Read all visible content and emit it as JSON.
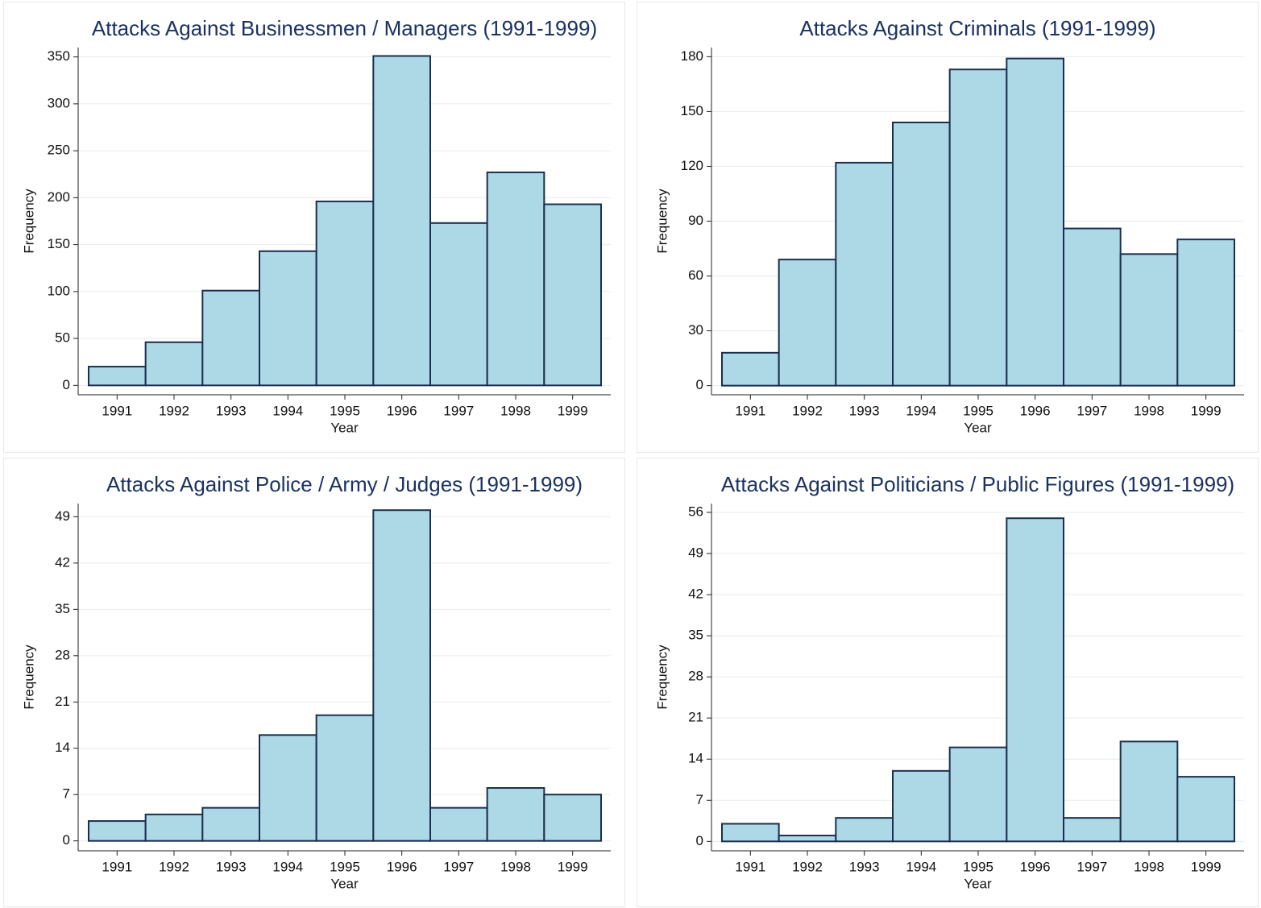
{
  "chart_data": [
    {
      "type": "bar",
      "title": "Attacks Against Businessmen / Managers (1991-1999)",
      "x_label": "Year",
      "y_label": "Frequency",
      "categories": [
        "1991",
        "1992",
        "1993",
        "1994",
        "1995",
        "1996",
        "1997",
        "1998",
        "1999"
      ],
      "values": [
        20,
        46,
        101,
        143,
        196,
        351,
        173,
        227,
        193
      ],
      "ylim": [
        -10,
        360
      ],
      "yticks": [
        0,
        50,
        100,
        150,
        200,
        250,
        300,
        350
      ],
      "grid": true,
      "color": "#add8e6",
      "edge_color": "#1a2f4f"
    },
    {
      "type": "bar",
      "title": "Attacks Against Criminals (1991-1999)",
      "x_label": "Year",
      "y_label": "Frequency",
      "categories": [
        "1991",
        "1992",
        "1993",
        "1994",
        "1995",
        "1996",
        "1997",
        "1998",
        "1999"
      ],
      "values": [
        18,
        69,
        122,
        144,
        173,
        179,
        86,
        72,
        80
      ],
      "ylim": [
        -5,
        185
      ],
      "yticks": [
        0,
        30,
        60,
        90,
        120,
        150,
        180
      ],
      "grid": true,
      "color": "#add8e6",
      "edge_color": "#1a2f4f"
    },
    {
      "type": "bar",
      "title": "Attacks Against Police / Army / Judges (1991-1999)",
      "x_label": "Year",
      "y_label": "Frequency",
      "categories": [
        "1991",
        "1992",
        "1993",
        "1994",
        "1995",
        "1996",
        "1997",
        "1998",
        "1999"
      ],
      "values": [
        3,
        4,
        5,
        16,
        19,
        50,
        5,
        8,
        7
      ],
      "ylim": [
        -1.5,
        51
      ],
      "yticks": [
        0,
        7,
        14,
        21,
        28,
        35,
        42,
        49
      ],
      "grid": true,
      "color": "#add8e6",
      "edge_color": "#1a2f4f"
    },
    {
      "type": "bar",
      "title": "Attacks Against Politicians / Public Figures (1991-1999)",
      "x_label": "Year",
      "y_label": "Frequency",
      "categories": [
        "1991",
        "1992",
        "1993",
        "1994",
        "1995",
        "1996",
        "1997",
        "1998",
        "1999"
      ],
      "values": [
        3,
        1,
        4,
        12,
        16,
        55,
        4,
        17,
        11
      ],
      "ylim": [
        -1.6,
        57.5
      ],
      "yticks": [
        0,
        7,
        14,
        21,
        28,
        35,
        42,
        49,
        56
      ],
      "grid": true,
      "color": "#add8e6",
      "edge_color": "#1a2f4f"
    }
  ]
}
